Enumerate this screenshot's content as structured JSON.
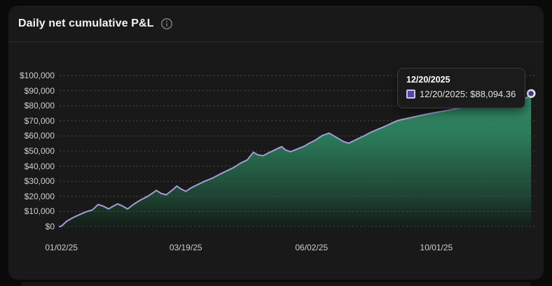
{
  "theme": {
    "background": "#0a0a0a",
    "card": "#191919",
    "divider": "#2a2a2a",
    "title_text": "#f2f2f2",
    "axis_text": "#cfcfcf",
    "tooltip_bg": "#1b1b1b",
    "tooltip_border": "#3d3d3d",
    "tooltip_text": "#e3e3e3",
    "swatch_fill": "#4f47ab",
    "swatch_border": "#c9c6e8",
    "next_card": "#161616"
  },
  "header": {
    "title": "Daily net cumulative P&L",
    "info_icon": "info-circle-icon"
  },
  "tooltip": {
    "title": "12/20/2025",
    "row_text": "12/20/2025: $88,094.36"
  },
  "chart_data": {
    "type": "area",
    "title": "Daily net cumulative P&L",
    "xlabel": "",
    "ylabel": "",
    "ylim": [
      0,
      100000
    ],
    "grid": true,
    "legend": false,
    "y_ticks": [
      {
        "value": 0,
        "label": "$0"
      },
      {
        "value": 10000,
        "label": "$10,000"
      },
      {
        "value": 20000,
        "label": "$20,000"
      },
      {
        "value": 30000,
        "label": "$30,000"
      },
      {
        "value": 40000,
        "label": "$40,000"
      },
      {
        "value": 50000,
        "label": "$50,000"
      },
      {
        "value": 60000,
        "label": "$60,000"
      },
      {
        "value": 70000,
        "label": "$70,000"
      },
      {
        "value": 80000,
        "label": "$80,000"
      },
      {
        "value": 90000,
        "label": "$90,000"
      },
      {
        "value": 100000,
        "label": "$100,000"
      }
    ],
    "x_ticks": [
      {
        "label": "01/02/25",
        "f": 0.004
      },
      {
        "label": "03/19/25",
        "f": 0.265
      },
      {
        "label": "06/02/25",
        "f": 0.529
      },
      {
        "label": "10/01/25",
        "f": 0.791
      }
    ],
    "colors": {
      "line": "#a49cd6",
      "grid": "#565656",
      "marker_fill": "#46409e",
      "marker_stroke": "#f2f1fa",
      "area_stops": [
        {
          "offset": "0%",
          "color": "#35936b",
          "opacity": 1
        },
        {
          "offset": "40%",
          "color": "#2b7a59",
          "opacity": 1
        },
        {
          "offset": "78%",
          "color": "#1e4634",
          "opacity": 0.95
        },
        {
          "offset": "100%",
          "color": "#131b15",
          "opacity": 0.9
        }
      ]
    },
    "series": [
      {
        "name": "Daily net cumulative P&L",
        "final_point": {
          "date": "12/20/2025",
          "value": 88094.36,
          "value_label": "$88,094.36"
        },
        "points": [
          [
            0.0,
            0
          ],
          [
            0.004,
            300
          ],
          [
            0.015,
            3500
          ],
          [
            0.029,
            6000
          ],
          [
            0.044,
            8200
          ],
          [
            0.056,
            9800
          ],
          [
            0.069,
            11000
          ],
          [
            0.081,
            14600
          ],
          [
            0.091,
            13600
          ],
          [
            0.103,
            11700
          ],
          [
            0.115,
            13900
          ],
          [
            0.122,
            15000
          ],
          [
            0.132,
            13600
          ],
          [
            0.143,
            11600
          ],
          [
            0.154,
            14400
          ],
          [
            0.169,
            17400
          ],
          [
            0.184,
            19800
          ],
          [
            0.199,
            22900
          ],
          [
            0.203,
            24000
          ],
          [
            0.213,
            22000
          ],
          [
            0.224,
            21000
          ],
          [
            0.238,
            24500
          ],
          [
            0.246,
            26800
          ],
          [
            0.254,
            25100
          ],
          [
            0.265,
            23300
          ],
          [
            0.276,
            25600
          ],
          [
            0.291,
            27900
          ],
          [
            0.306,
            30200
          ],
          [
            0.321,
            32100
          ],
          [
            0.335,
            34400
          ],
          [
            0.35,
            36700
          ],
          [
            0.365,
            39000
          ],
          [
            0.379,
            41800
          ],
          [
            0.394,
            44100
          ],
          [
            0.407,
            49200
          ],
          [
            0.416,
            47500
          ],
          [
            0.427,
            46900
          ],
          [
            0.438,
            48700
          ],
          [
            0.451,
            50600
          ],
          [
            0.466,
            52900
          ],
          [
            0.475,
            50600
          ],
          [
            0.485,
            49600
          ],
          [
            0.5,
            51500
          ],
          [
            0.515,
            53400
          ],
          [
            0.522,
            54800
          ],
          [
            0.537,
            57200
          ],
          [
            0.551,
            60200
          ],
          [
            0.566,
            61900
          ],
          [
            0.581,
            59100
          ],
          [
            0.596,
            56300
          ],
          [
            0.607,
            55200
          ],
          [
            0.625,
            57900
          ],
          [
            0.64,
            60200
          ],
          [
            0.654,
            62500
          ],
          [
            0.669,
            64500
          ],
          [
            0.684,
            66500
          ],
          [
            0.699,
            68700
          ],
          [
            0.71,
            70200
          ],
          [
            0.728,
            71500
          ],
          [
            0.75,
            73000
          ],
          [
            0.772,
            74500
          ],
          [
            0.794,
            75800
          ],
          [
            0.816,
            77000
          ],
          [
            0.838,
            78300
          ],
          [
            0.86,
            79500
          ],
          [
            0.882,
            80800
          ],
          [
            0.904,
            82000
          ],
          [
            0.927,
            83200
          ],
          [
            0.948,
            84300
          ],
          [
            0.966,
            85200
          ],
          [
            0.975,
            85600
          ],
          [
            0.981,
            85200
          ],
          [
            0.99,
            88094.36
          ]
        ]
      }
    ]
  }
}
